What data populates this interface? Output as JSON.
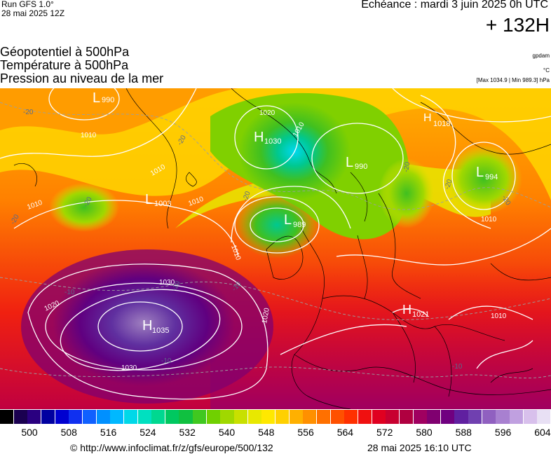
{
  "header": {
    "run": "Run GFS 1.0°",
    "run_date": "28 mai 2025 12Z",
    "echeance": "Echéance : mardi 3 juin 2025 0h UTC",
    "lead_time": "+ 132H"
  },
  "parameters": [
    "Géopotentiel à 500hPa",
    "Température à 500hPa",
    "Pression au niveau de la mer"
  ],
  "meta": {
    "source": "gpdam",
    "unit": "°C",
    "maxmin": "[Max 1034.9 | Min 989.3] hPa"
  },
  "map": {
    "pressure_centers": [
      {
        "type": "L",
        "value": "990"
      },
      {
        "type": "H",
        "value": "1030"
      },
      {
        "type": "L",
        "value": "990"
      },
      {
        "type": "H",
        "value": "1018"
      },
      {
        "type": "L",
        "value": "994"
      },
      {
        "type": "L",
        "value": "1003"
      },
      {
        "type": "L",
        "value": "989"
      },
      {
        "type": "H",
        "value": "1035"
      },
      {
        "type": "H",
        "value": "1021"
      }
    ],
    "isobar_labels": [
      "1020",
      "1010",
      "1010",
      "1010",
      "1010",
      "1010",
      "1020",
      "1030",
      "1030",
      "1020",
      "1010",
      "1010",
      "1010"
    ],
    "temperature_labels": [
      "-20",
      "-20",
      "-20",
      "-20",
      "-20",
      "-20",
      "-20",
      "-20",
      "-10",
      "-10",
      "-10",
      "-10",
      "-10"
    ]
  },
  "scale": {
    "labels": [
      "500",
      "508",
      "516",
      "524",
      "532",
      "540",
      "548",
      "556",
      "564",
      "572",
      "580",
      "588",
      "596",
      "604"
    ],
    "colors": [
      "#000000",
      "#1a0050",
      "#2a0080",
      "#0000a0",
      "#0000d0",
      "#1030f0",
      "#1060ff",
      "#0090ff",
      "#00b8ff",
      "#00d8e8",
      "#00e0c0",
      "#00d890",
      "#00c860",
      "#10c040",
      "#40c820",
      "#70d000",
      "#a0d800",
      "#c8e000",
      "#e8e800",
      "#ffe800",
      "#ffd000",
      "#ffb000",
      "#ff9000",
      "#ff7000",
      "#ff5000",
      "#ff3000",
      "#f01010",
      "#e00020",
      "#c80030",
      "#b00040",
      "#a00060",
      "#800070",
      "#700080",
      "#6020a0",
      "#7040b0",
      "#9060c0",
      "#a880d0",
      "#c0a0e0",
      "#d8c0ec",
      "#e8e0f4"
    ]
  },
  "footer": {
    "copyright": "© http://www.infoclimat.fr/z/gfs/europe/500/132",
    "issued": "28 mai 2025 16:10 UTC"
  }
}
